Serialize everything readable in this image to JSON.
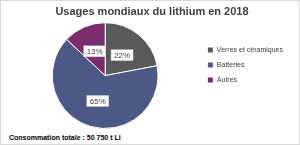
{
  "chart_data": {
    "type": "pie",
    "title": "Usages mondiaux du lithium en 2018",
    "categories": [
      "Verres et céramiques",
      "Batteries",
      "Autres"
    ],
    "values": [
      22,
      65,
      13
    ],
    "value_labels": [
      "22%",
      "65%",
      "13%"
    ],
    "colors": [
      "#5a5a5a",
      "#4d5984",
      "#7a2c6c"
    ],
    "data_labels": true,
    "legend": "right",
    "annotations": [
      "Consommation totale : 50 750 t Li"
    ]
  }
}
